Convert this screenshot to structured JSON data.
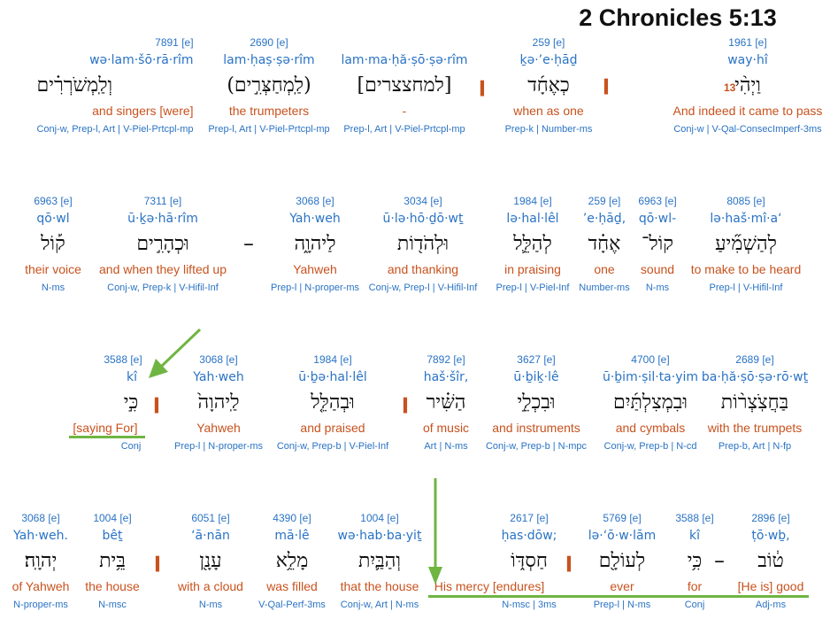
{
  "header": {
    "title": "2 Chronicles 5:13"
  },
  "verse_number": "13",
  "rows": [
    {
      "words": [
        {
          "strong": "1961 [e]",
          "translit": "way·hî",
          "hebrew": "וַיְהִ֨י",
          "gloss": "And indeed it came to pass",
          "morph": "Conj-w | V-Qal-ConsecImperf-3ms"
        },
        {
          "strong": "259 [e]",
          "translit": "ḵə·’e·ḥāḏ",
          "hebrew": "כְאֶחָ֜ד",
          "gloss": "when as one",
          "morph": "Prep-k | Number-ms"
        },
        {
          "strong": "",
          "translit": "lam·ma·ḥă·ṣō·ṣə·rîm",
          "hebrew": "[למחצצרים]",
          "gloss": "-",
          "morph": "Prep-l, Art | V-Piel-Prtcpl-mp"
        },
        {
          "strong": "2690 [e]",
          "translit": "lam·ḥaṣ·ṣə·rîm",
          "hebrew": "(לַֽמְחַצְּרִ֣ים)",
          "gloss": "the trumpeters",
          "morph": "Prep-l, Art | V-Piel-Prtcpl-mp"
        },
        {
          "strong": "7891 [e]",
          "translit": "wə·lam·šō·rā·rîm",
          "hebrew": "וְלַֽמְשֹׁרְרִ֗ים",
          "gloss": "and singers [were]",
          "morph": "Conj-w, Prep-l, Art | V-Piel-Prtcpl-mp"
        }
      ]
    },
    {
      "words": [
        {
          "strong": "8085 [e]",
          "translit": "lə·haš·mî·a‘",
          "hebrew": "לְהַשְׁמִ֞יעַ",
          "gloss": "to make to be heard",
          "morph": "Prep-l | V-Hifil-Inf"
        },
        {
          "strong": "6963 [e]",
          "translit": "qō·wl-",
          "hebrew": "קוֹל־",
          "gloss": "sound",
          "morph": "N-ms"
        },
        {
          "strong": "259 [e]",
          "translit": "’e·ḥāḏ,",
          "hebrew": "אֶחָ֗ד",
          "gloss": "one",
          "morph": "Number-ms"
        },
        {
          "strong": "1984 [e]",
          "translit": "lə·hal·lêl",
          "hebrew": "לְהַלֵּ֛ל",
          "gloss": "in praising",
          "morph": "Prep-l | V-Piel-Inf"
        },
        {
          "strong": "3034 [e]",
          "translit": "ū·lə·hō·ḏō·wṯ",
          "hebrew": "וּלְהֹד֖וֹת",
          "gloss": "and thanking",
          "morph": "Conj-w, Prep-l | V-Hifil-Inf"
        },
        {
          "strong": "3068 [e]",
          "translit": "Yah·weh",
          "hebrew": "לַיהוָ֑ה",
          "gloss": "Yahweh",
          "morph": "Prep-l | N-proper-ms"
        },
        {
          "strong": "7311 [e]",
          "translit": "ū·ḵə·hā·rîm",
          "hebrew": "וּכְהָרִ֣ים",
          "gloss": "and when they lifted up",
          "morph": "Conj-w, Prep-k | V-Hifil-Inf"
        },
        {
          "strong": "6963 [e]",
          "translit": "qō·wl",
          "hebrew": "ק֡וֹל",
          "gloss": "their voice",
          "morph": "N-ms"
        }
      ]
    },
    {
      "words": [
        {
          "strong": "2689 [e]",
          "translit": "ba·ḥă·ṣō·ṣə·rō·wṯ",
          "hebrew": "בַּחֲצֹֽצְר֨וֹת",
          "gloss": "with the trumpets",
          "morph": "Prep-b, Art | N-fp"
        },
        {
          "strong": "4700 [e]",
          "translit": "ū·ḇim·ṣil·ta·yim",
          "hebrew": "וּבִמְצִלְתַּ֜יִם",
          "gloss": "and cymbals",
          "morph": "Conj-w, Prep-b | N-cd"
        },
        {
          "strong": "3627 [e]",
          "translit": "ū·ḇiḵ·lê",
          "hebrew": "וּבִכְלֵ֣י",
          "gloss": "and instruments",
          "morph": "Conj-w, Prep-b | N-mpc"
        },
        {
          "strong": "7892 [e]",
          "translit": "haš·šîr,",
          "hebrew": "הַשִּׁ֗יר",
          "gloss": "of music",
          "morph": "Art | N-ms"
        },
        {
          "strong": "1984 [e]",
          "translit": "ū·ḇə·hal·lêl",
          "hebrew": "וּבְהַלֵּ֤ל",
          "gloss": "and praised",
          "morph": "Conj-w, Prep-b | V-Piel-Inf"
        },
        {
          "strong": "3068 [e]",
          "translit": "Yah·weh",
          "hebrew": "לַֽיהוָה֙",
          "gloss": "Yahweh",
          "morph": "Prep-l | N-proper-ms"
        },
        {
          "strong": "3588 [e]",
          "translit": "kî",
          "hebrew": "כִּ֣י",
          "gloss": "[saying For]",
          "morph": "Conj"
        }
      ]
    },
    {
      "words": [
        {
          "strong": "2896 [e]",
          "translit": "ṭō·wḇ,",
          "hebrew": "ט֔וֹב",
          "gloss": "[He is] good",
          "morph": "Adj-ms"
        },
        {
          "strong": "3588 [e]",
          "translit": "kî",
          "hebrew": "כִּ֥י",
          "gloss": "for",
          "morph": "Conj"
        },
        {
          "strong": "5769 [e]",
          "translit": "lə·‘ō·w·lām",
          "hebrew": "לְעוֹלָ֖ם",
          "gloss": "ever",
          "morph": "Prep-l | N-ms"
        },
        {
          "strong": "2617 [e]",
          "translit": "ḥas·dōw;",
          "hebrew": "חַסְדּ֑וֹ",
          "gloss": "His mercy [endures]",
          "morph": "N-msc | 3ms"
        },
        {
          "strong": "1004 [e]",
          "translit": "wə·hab·ba·yiṯ",
          "hebrew": "וְהַבַּ֛יִת",
          "gloss": "that the house",
          "morph": "Conj-w, Art | N-ms"
        },
        {
          "strong": "4390 [e]",
          "translit": "mā·lê",
          "hebrew": "מָלֵ֥א",
          "gloss": "was filled",
          "morph": "V-Qal-Perf-3ms"
        },
        {
          "strong": "6051 [e]",
          "translit": "‘ā·nān",
          "hebrew": "עָנָ֖ן",
          "gloss": "with a cloud",
          "morph": "N-ms"
        },
        {
          "strong": "1004 [e]",
          "translit": "bêṯ",
          "hebrew": "בֵּ֥ית",
          "gloss": "the house",
          "morph": "N-msc"
        },
        {
          "strong": "3068 [e]",
          "translit": "Yah·weh.",
          "hebrew": "יְהוָֽה׃",
          "gloss": "of Yahweh",
          "morph": "N-proper-ms"
        }
      ]
    }
  ],
  "separators": {
    "paseq": "׀",
    "maqaf": "–"
  },
  "colors": {
    "blue": "#2a73c4",
    "orange": "#c8521e",
    "green": "#6fb542",
    "hebrew": "#111111"
  }
}
